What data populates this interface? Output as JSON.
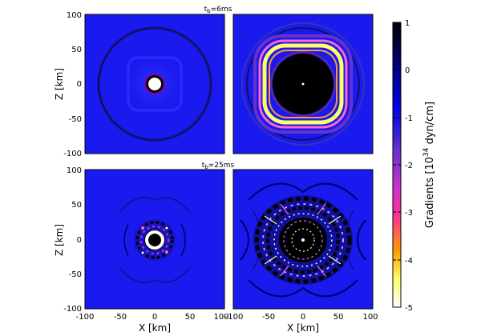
{
  "chart_data": {
    "type": "heatmap",
    "panel_titles": [
      {
        "base": "t",
        "sub": "b",
        "rest": "=6ms"
      },
      {
        "base": "t",
        "sub": "b",
        "rest": "=25ms"
      }
    ],
    "xlabel": "X [km]",
    "ylabel": "Z [km]",
    "x_range": [
      -100,
      100
    ],
    "y_range": [
      -100,
      100
    ],
    "x_tick_labels": [
      "-100",
      "-50",
      "0",
      "50",
      "100"
    ],
    "y_tick_labels": [
      "100",
      "50",
      "0",
      "-50",
      "-100"
    ],
    "colorbar": {
      "label_prefix": "Gradients [10",
      "label_exp": "34",
      "label_suffix": " dyn/cm]",
      "range": [
        -5,
        1
      ],
      "tick_labels": [
        "1",
        "0",
        "-1",
        "-2",
        "-3",
        "-4",
        "-5"
      ],
      "colors": [
        "#ffffff",
        "#ffff66",
        "#ff9900",
        "#ff3399",
        "#cc33cc",
        "#6633cc",
        "#0000e6",
        "#000080",
        "#000000"
      ]
    },
    "panels": [
      {
        "row": 1,
        "col": 1,
        "time": "6ms",
        "background": "#1a1aee"
      },
      {
        "row": 1,
        "col": 2,
        "time": "6ms",
        "background": "#1a1aee"
      },
      {
        "row": 2,
        "col": 1,
        "time": "25ms",
        "background": "#1a1aee"
      },
      {
        "row": 2,
        "col": 2,
        "time": "25ms",
        "background": "#1a1aee"
      }
    ]
  }
}
